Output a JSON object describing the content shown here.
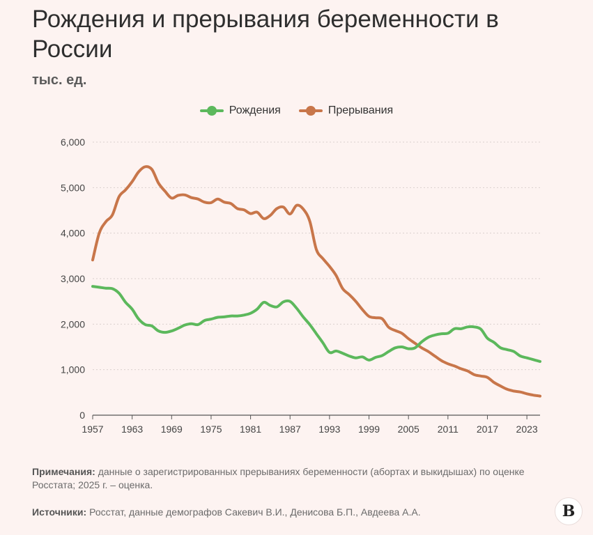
{
  "title": "Рождения и прерывания беременности в России",
  "units": "тыс. ед.",
  "legend": [
    {
      "name": "Рождения",
      "color": "#5cb85c"
    },
    {
      "name": "Прерывания",
      "color": "#c8764a"
    }
  ],
  "notes": {
    "label": "Примечания:",
    "text": "данные о зарегистрированных прерываниях беременности (абортах и выкидышах) по оценке Росстата; 2025 г. – оценка."
  },
  "sources": {
    "label": "Источники:",
    "text": "Росстат, данные демографов Сакевич В.И., Денисова Б.П., Авдеева А.А."
  },
  "logo": "В",
  "chart_data": {
    "type": "line",
    "xlim": [
      1957,
      2025
    ],
    "ylim": [
      0,
      6000
    ],
    "yticks": [
      0,
      1000,
      2000,
      3000,
      4000,
      5000,
      6000
    ],
    "ytick_labels": [
      "0",
      "1,000",
      "2,000",
      "3,000",
      "4,000",
      "5,000",
      "6,000"
    ],
    "xticks": [
      "1957",
      "1963",
      "1969",
      "1975",
      "1981",
      "1987",
      "1993",
      "1999",
      "2005",
      "2011",
      "2017",
      "2023"
    ],
    "grid": "horizontal dashed",
    "legend_position": "top-center",
    "series": [
      {
        "name": "Рождения",
        "color": "#5cb85c",
        "x": [
          1957,
          1958,
          1959,
          1960,
          1961,
          1962,
          1963,
          1964,
          1965,
          1966,
          1967,
          1968,
          1969,
          1970,
          1971,
          1972,
          1973,
          1974,
          1975,
          1976,
          1977,
          1978,
          1979,
          1980,
          1981,
          1982,
          1983,
          1984,
          1985,
          1986,
          1987,
          1988,
          1989,
          1990,
          1991,
          1992,
          1993,
          1994,
          1995,
          1996,
          1997,
          1998,
          1999,
          2000,
          2001,
          2002,
          2003,
          2004,
          2005,
          2006,
          2007,
          2008,
          2009,
          2010,
          2011,
          2012,
          2013,
          2014,
          2015,
          2016,
          2017,
          2018,
          2019,
          2020,
          2021,
          2022,
          2023,
          2024,
          2025
        ],
        "y": [
          2830,
          2810,
          2790,
          2780,
          2680,
          2480,
          2330,
          2110,
          1990,
          1960,
          1850,
          1820,
          1850,
          1910,
          1980,
          2010,
          1990,
          2080,
          2110,
          2150,
          2160,
          2180,
          2180,
          2200,
          2240,
          2330,
          2480,
          2410,
          2380,
          2490,
          2500,
          2350,
          2160,
          1990,
          1790,
          1590,
          1380,
          1410,
          1360,
          1300,
          1260,
          1280,
          1210,
          1270,
          1310,
          1400,
          1480,
          1500,
          1460,
          1480,
          1610,
          1710,
          1760,
          1790,
          1800,
          1900,
          1900,
          1940,
          1940,
          1890,
          1690,
          1600,
          1480,
          1440,
          1400,
          1300,
          1260,
          1220,
          1180
        ]
      },
      {
        "name": "Прерывания",
        "color": "#c8764a",
        "x": [
          1957,
          1958,
          1959,
          1960,
          1961,
          1962,
          1963,
          1964,
          1965,
          1966,
          1967,
          1968,
          1969,
          1970,
          1971,
          1972,
          1973,
          1974,
          1975,
          1976,
          1977,
          1978,
          1979,
          1980,
          1981,
          1982,
          1983,
          1984,
          1985,
          1986,
          1987,
          1988,
          1989,
          1990,
          1991,
          1992,
          1993,
          1994,
          1995,
          1996,
          1997,
          1998,
          1999,
          2000,
          2001,
          2002,
          2003,
          2004,
          2005,
          2006,
          2007,
          2008,
          2009,
          2010,
          2011,
          2012,
          2013,
          2014,
          2015,
          2016,
          2017,
          2018,
          2019,
          2020,
          2021,
          2022,
          2023,
          2024,
          2025
        ],
        "y": [
          3410,
          4000,
          4250,
          4400,
          4800,
          4950,
          5130,
          5350,
          5460,
          5400,
          5100,
          4920,
          4770,
          4830,
          4840,
          4780,
          4750,
          4680,
          4670,
          4750,
          4680,
          4650,
          4540,
          4510,
          4430,
          4460,
          4320,
          4390,
          4540,
          4570,
          4420,
          4610,
          4530,
          4260,
          3640,
          3440,
          3270,
          3070,
          2780,
          2650,
          2500,
          2320,
          2170,
          2140,
          2120,
          1930,
          1860,
          1800,
          1680,
          1580,
          1480,
          1400,
          1300,
          1200,
          1130,
          1080,
          1020,
          970,
          890,
          860,
          830,
          720,
          640,
          570,
          530,
          510,
          470,
          440,
          420
        ]
      }
    ]
  }
}
